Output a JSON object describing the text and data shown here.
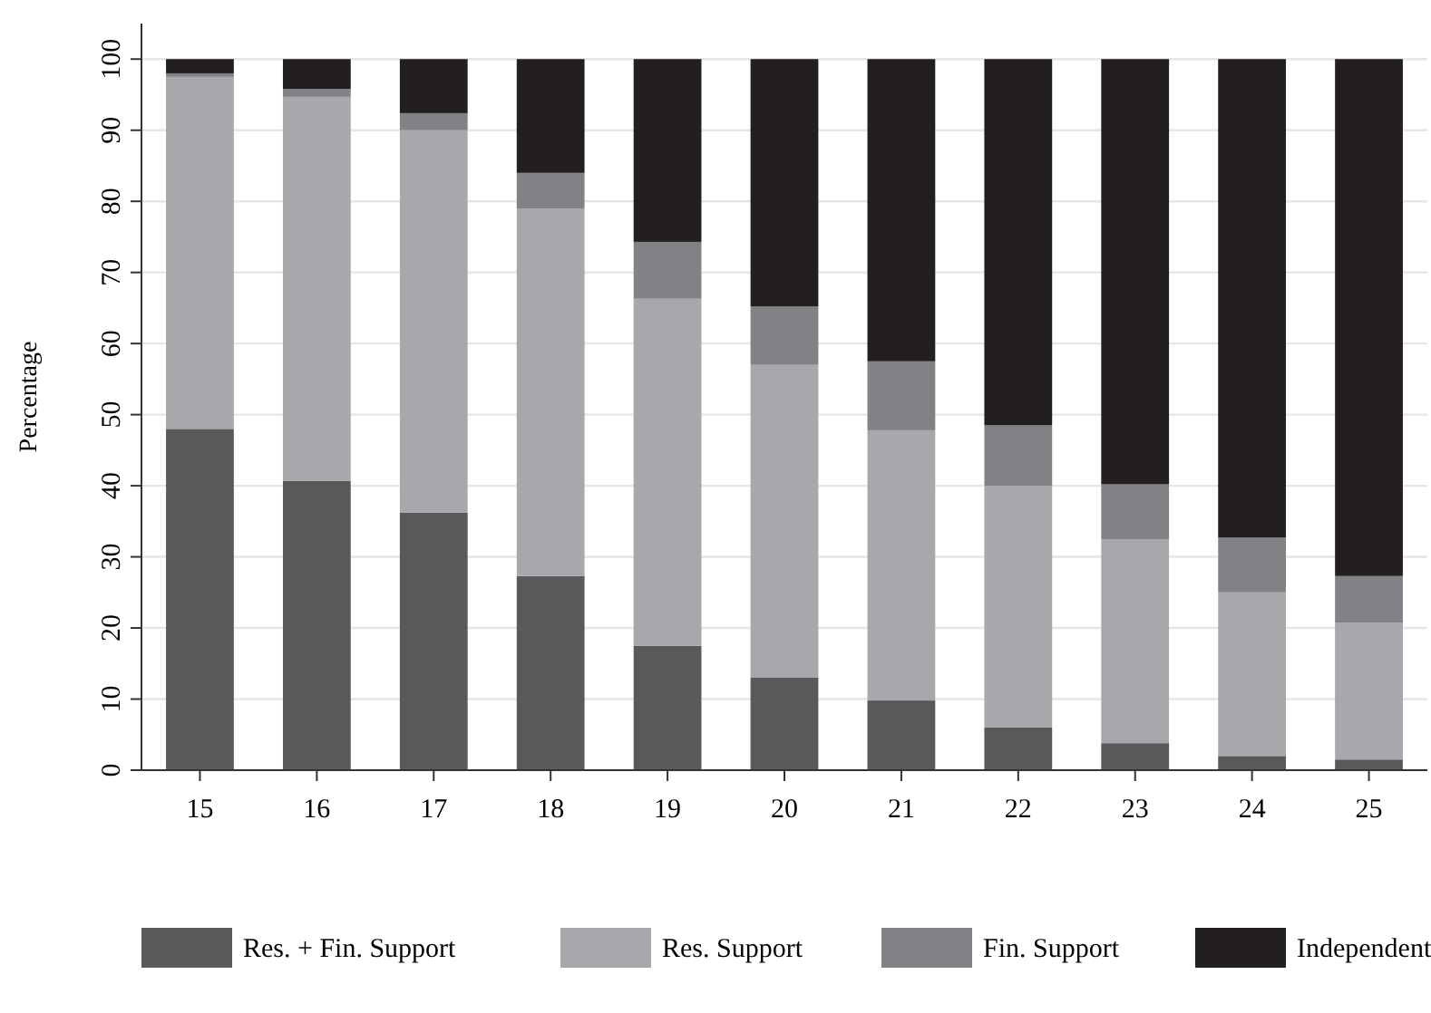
{
  "chart_data": {
    "type": "bar",
    "stacked": true,
    "ylabel": "Percentage",
    "categories": [
      "15",
      "16",
      "17",
      "18",
      "19",
      "20",
      "21",
      "22",
      "23",
      "24",
      "25"
    ],
    "ylim": [
      0,
      105
    ],
    "yticks": [
      0,
      10,
      20,
      30,
      40,
      50,
      60,
      70,
      80,
      90,
      100
    ],
    "grid": "y",
    "legend": "bottom",
    "series": [
      {
        "name": "Res. + Fin. Support",
        "color": "#58595b",
        "values": [
          48,
          40.7,
          36.2,
          27.3,
          17.5,
          13,
          9.8,
          6,
          3.8,
          2,
          1.5
        ]
      },
      {
        "name": "Res. Support",
        "color": "#a7a8ab",
        "values": [
          49.5,
          54,
          53.8,
          51.7,
          48.8,
          44,
          38,
          34,
          28.7,
          23,
          19.2
        ]
      },
      {
        "name": "Fin. Support",
        "color": "#808285",
        "values": [
          0.5,
          1.1,
          2.4,
          5,
          8,
          8.2,
          9.7,
          8.5,
          7.7,
          7.7,
          6.6
        ]
      },
      {
        "name": "Independent",
        "color": "#231f20",
        "values": [
          2,
          4.2,
          7.6,
          16,
          25.7,
          34.8,
          42.5,
          51.5,
          59.8,
          67.3,
          72.7
        ]
      }
    ]
  }
}
